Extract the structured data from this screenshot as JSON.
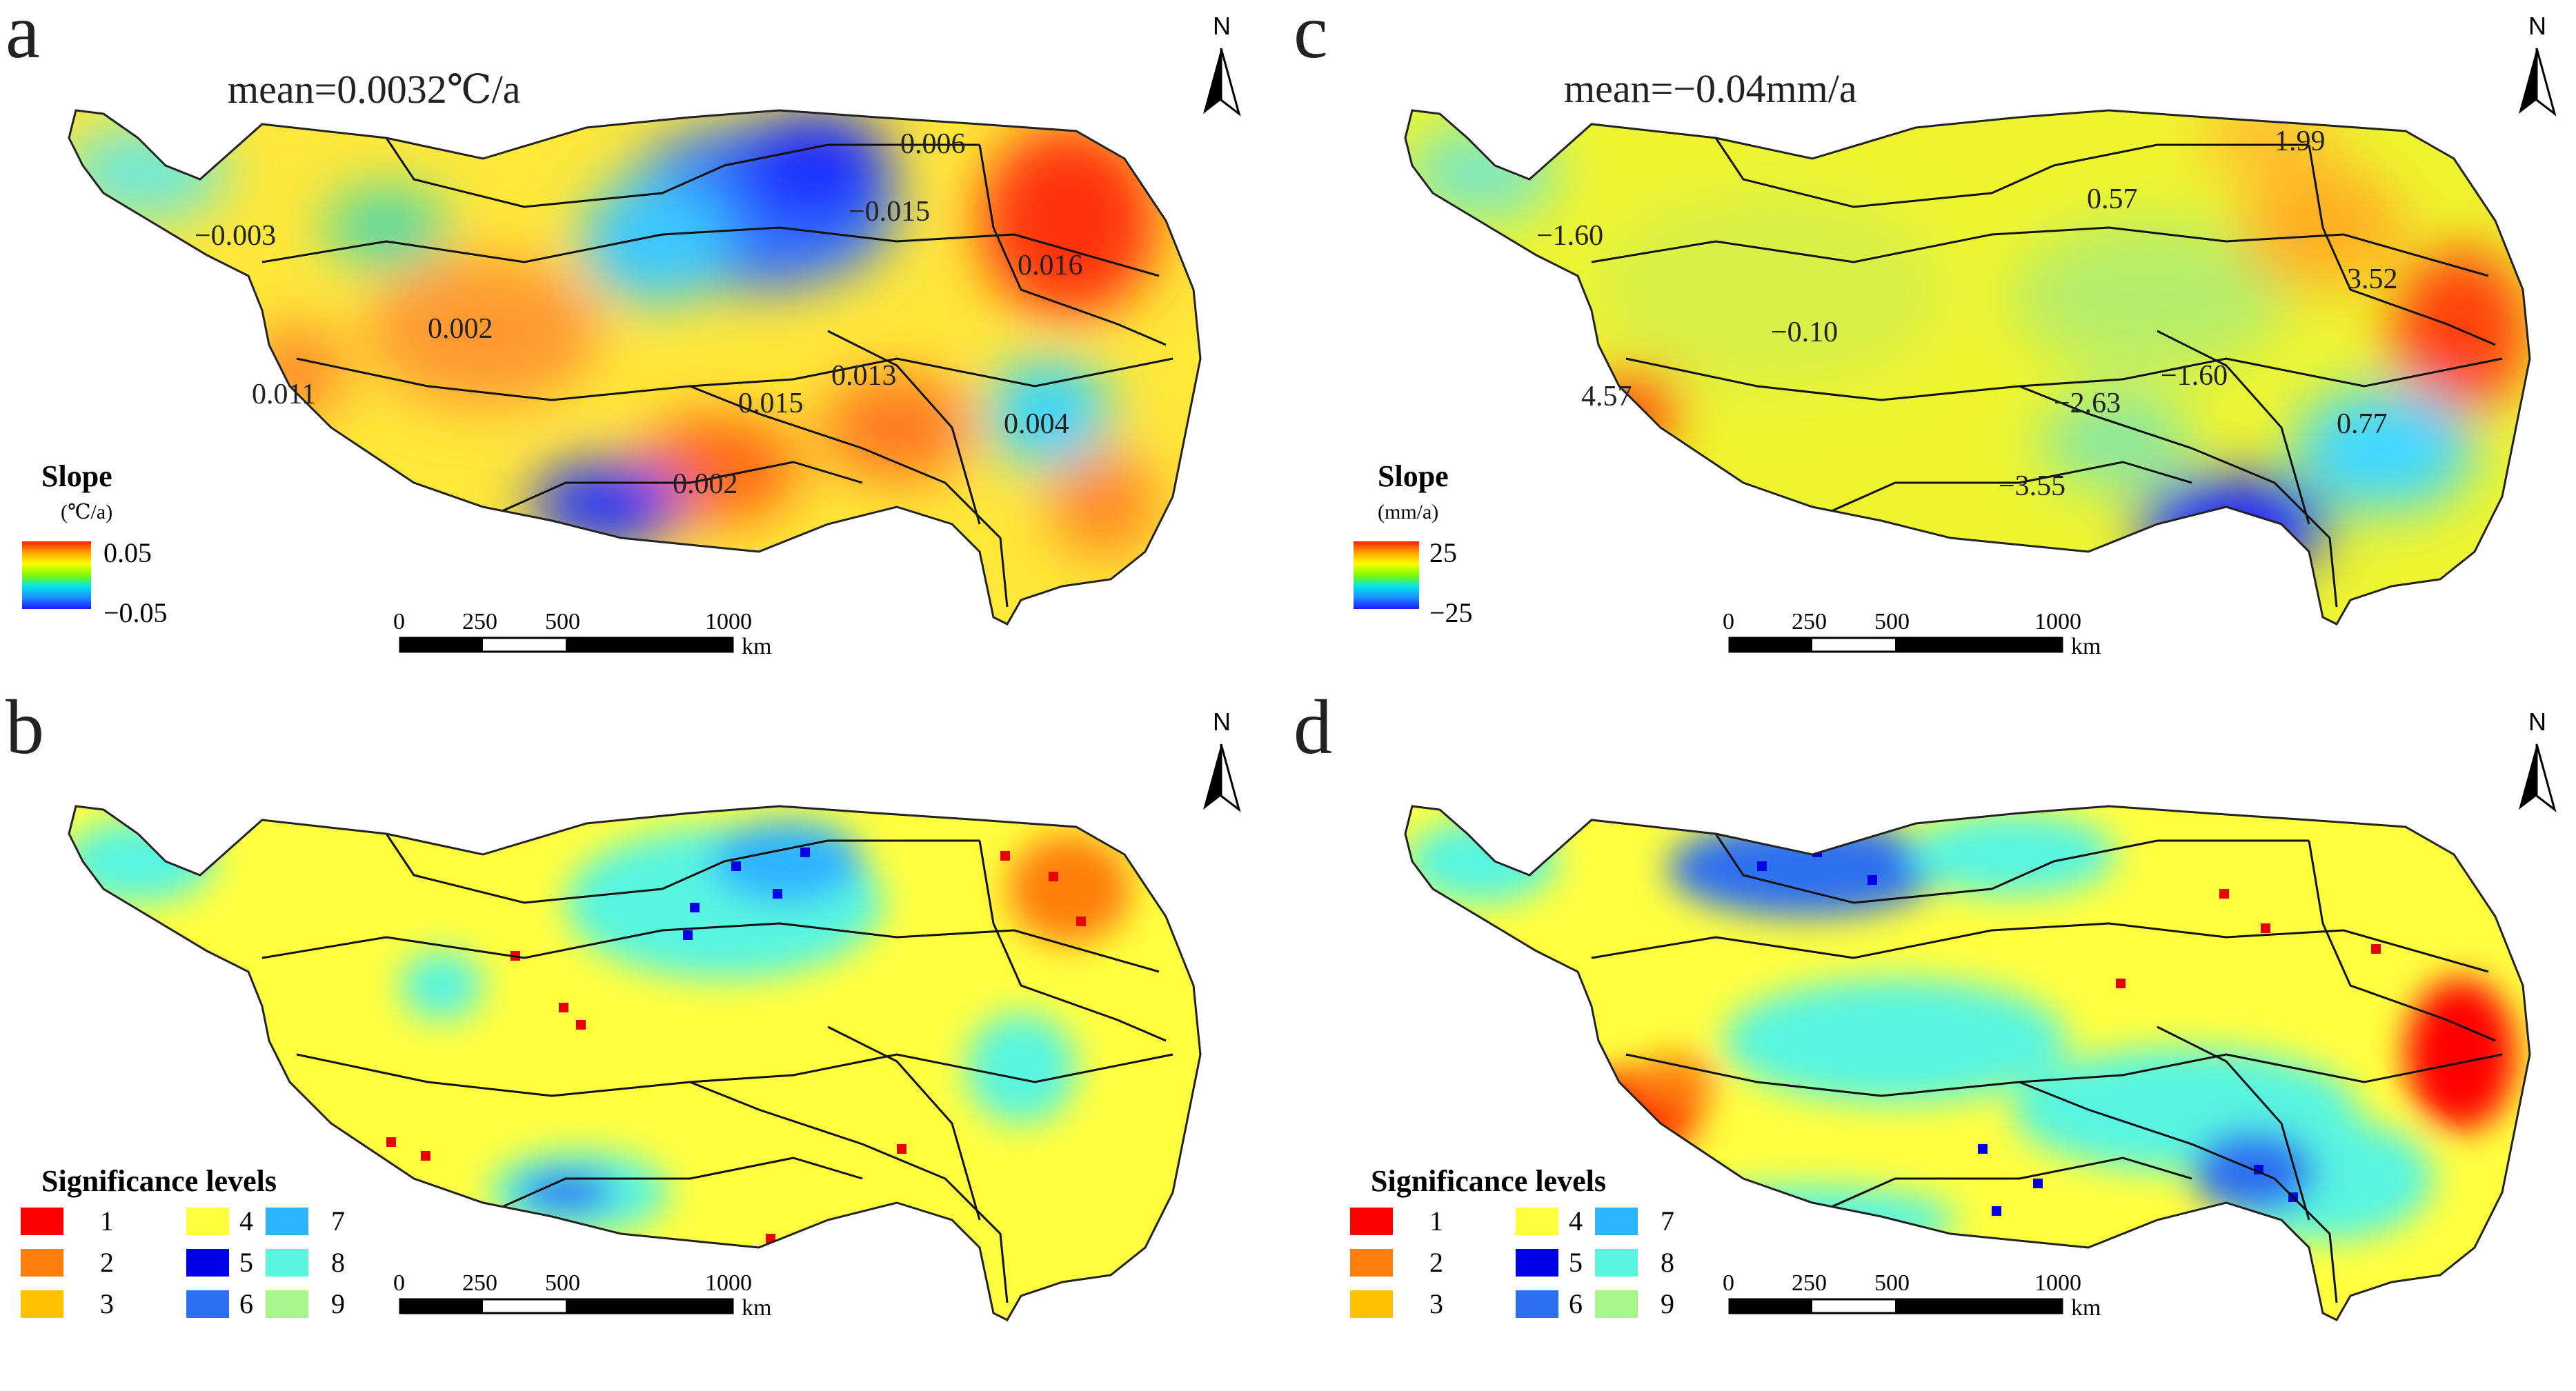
{
  "panels": {
    "a": {
      "label": "a",
      "mean": "mean=0.0032℃/a",
      "annotations": [
        "−0.003",
        "0.002",
        "0.011",
        "0.006",
        "−0.015",
        "0.016",
        "0.015",
        "0.013",
        "0.004",
        "0.002"
      ],
      "legend": {
        "title": "Slope",
        "unit": "(℃/a)",
        "max": "0.05",
        "min": "−0.05"
      }
    },
    "b": {
      "label": "b",
      "legend": {
        "title": "Significance levels",
        "classes": [
          "1",
          "2",
          "3",
          "4",
          "5",
          "6",
          "7",
          "8",
          "9"
        ]
      }
    },
    "c": {
      "label": "c",
      "mean": "mean=−0.04mm/a",
      "annotations": [
        "−1.60",
        "1.99",
        "0.57",
        "3.52",
        "−0.10",
        "4.57",
        "−1.60",
        "−2.63",
        "0.77",
        "−3.55"
      ],
      "legend": {
        "title": "Slope",
        "unit": "(mm/a)",
        "max": "25",
        "min": "−25"
      }
    },
    "d": {
      "label": "d",
      "legend": {
        "title": "Significance levels",
        "classes": [
          "1",
          "2",
          "3",
          "4",
          "5",
          "6",
          "7",
          "8",
          "9"
        ]
      }
    }
  },
  "scale_bar": {
    "ticks": [
      "0",
      "250",
      "500",
      "1000"
    ],
    "unit": "km"
  },
  "north_arrow": {
    "label": "N"
  },
  "colors": {
    "gradient": [
      "#1a1aff",
      "#1e90ff",
      "#00e5ee",
      "#7cfc00",
      "#ffff00",
      "#ffa500",
      "#ff2000"
    ],
    "significance": [
      "#ff0000",
      "#ff7f0e",
      "#ffc000",
      "#ffff40",
      "#0000e6",
      "#2e6ff0",
      "#2eb3ff",
      "#59f5e0",
      "#a8f58a"
    ]
  }
}
